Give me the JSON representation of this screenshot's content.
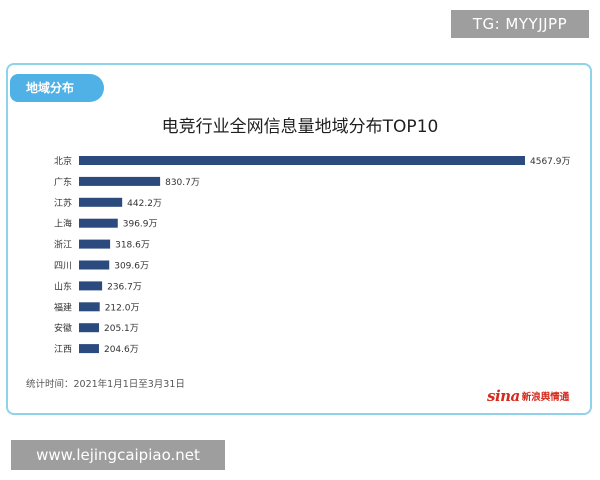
{
  "watermark_top": "TG: MYYJJPP",
  "watermark_bottom": "www.lejingcaipiao.net",
  "tag": "地域分布",
  "footnote": "统计时间：2021年1月1日至3月31日",
  "logo": {
    "mark": "sina",
    "text": "新浪舆情通"
  },
  "chart_data": {
    "type": "bar",
    "orientation": "horizontal",
    "title": "电竞行业全网信息量地域分布TOP10",
    "unit": "万",
    "categories": [
      "北京",
      "广东",
      "江苏",
      "上海",
      "浙江",
      "四川",
      "山东",
      "福建",
      "安徽",
      "江西"
    ],
    "values": [
      4567.9,
      830.7,
      442.2,
      396.9,
      318.6,
      309.6,
      236.7,
      212.0,
      205.1,
      204.6
    ],
    "value_labels": [
      "4567.9万",
      "830.7万",
      "442.2万",
      "396.9万",
      "318.6万",
      "309.6万",
      "236.7万",
      "212.0万",
      "205.1万",
      "204.6万"
    ],
    "bar_color": "#2b4a7e",
    "xlim": [
      0,
      4567.9
    ],
    "grid": false,
    "legend": "none"
  }
}
